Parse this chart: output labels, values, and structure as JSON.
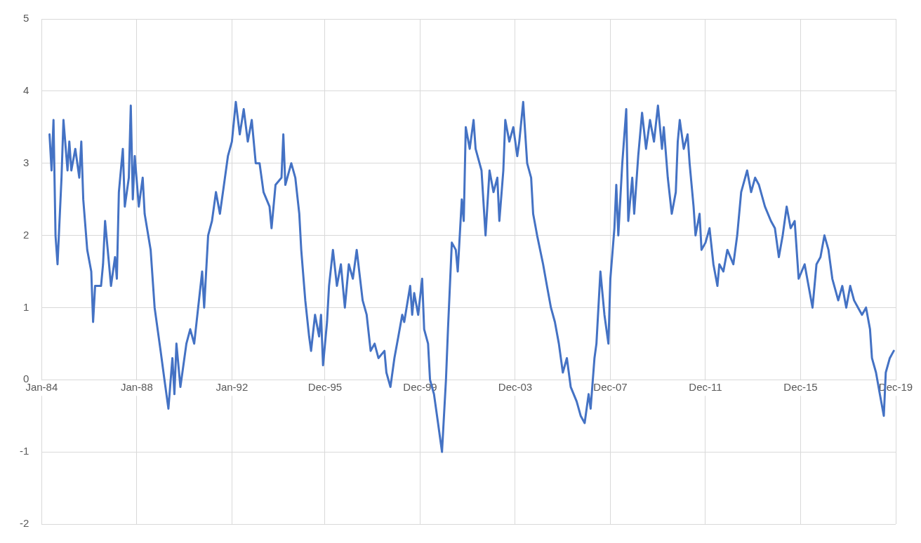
{
  "chart_data": {
    "type": "line",
    "x": [
      "1984-05",
      "1984-06",
      "1984-07",
      "1984-08",
      "1984-09",
      "1984-09",
      "1984-11",
      "1984-12",
      "1985-02",
      "1985-03",
      "1985-04",
      "1985-06",
      "1985-08",
      "1985-09",
      "1985-10",
      "1985-12",
      "1986-02",
      "1986-03",
      "1986-04",
      "1986-07",
      "1986-08",
      "1986-09",
      "1986-11",
      "1986-12",
      "1987-02",
      "1987-03",
      "1987-04",
      "1987-06",
      "1987-07",
      "1987-09",
      "1987-10",
      "1987-11",
      "1987-12",
      "1988-02",
      "1988-04",
      "1988-05",
      "1988-08",
      "1988-10",
      "1989-01",
      "1989-03",
      "1989-05",
      "1989-07",
      "1989-08",
      "1989-09",
      "1989-11",
      "1990-02",
      "1990-04",
      "1990-06",
      "1990-08",
      "1990-10",
      "1990-11",
      "1991-01",
      "1991-03",
      "1991-05",
      "1991-07",
      "1991-09",
      "1991-11",
      "1992-01",
      "1992-03",
      "1992-05",
      "1992-07",
      "1992-09",
      "1992-11",
      "1993-01",
      "1993-03",
      "1993-05",
      "1993-08",
      "1993-09",
      "1993-11",
      "1994-02",
      "1994-03",
      "1994-04",
      "1994-07",
      "1994-09",
      "1994-11",
      "1994-12",
      "1995-02",
      "1995-04",
      "1995-05",
      "1995-07",
      "1995-09",
      "1995-10",
      "1995-11",
      "1996-01",
      "1996-02",
      "1996-04",
      "1996-06",
      "1996-08",
      "1996-10",
      "1996-12",
      "1997-02",
      "1997-04",
      "1997-07",
      "1997-09",
      "1997-11",
      "1998-01",
      "1998-03",
      "1998-06",
      "1998-07",
      "1998-09",
      "1998-11",
      "1999-01",
      "1999-03",
      "1999-04",
      "1999-07",
      "1999-08",
      "1999-09",
      "1999-11",
      "2000-01",
      "2000-02",
      "2000-04",
      "2000-05",
      "2000-07",
      "2000-09",
      "2000-11",
      "2001-01",
      "2001-02",
      "2001-04",
      "2001-06",
      "2001-07",
      "2001-09",
      "2001-10",
      "2001-11",
      "2002-01",
      "2002-03",
      "2002-04",
      "2002-07",
      "2002-09",
      "2002-11",
      "2003-01",
      "2003-03",
      "2003-04",
      "2003-06",
      "2003-07",
      "2003-09",
      "2003-11",
      "2004-01",
      "2004-02",
      "2004-04",
      "2004-06",
      "2004-08",
      "2004-09",
      "2004-11",
      "2005-02",
      "2005-04",
      "2005-06",
      "2005-08",
      "2005-10",
      "2005-12",
      "2006-02",
      "2006-04",
      "2006-07",
      "2006-09",
      "2006-11",
      "2007-01",
      "2007-02",
      "2007-04",
      "2007-05",
      "2007-07",
      "2007-09",
      "2007-11",
      "2007-12",
      "2008-02",
      "2008-03",
      "2008-04",
      "2008-06",
      "2008-08",
      "2008-09",
      "2008-11",
      "2008-12",
      "2009-02",
      "2009-04",
      "2009-06",
      "2009-08",
      "2009-10",
      "2009-12",
      "2010-02",
      "2010-03",
      "2010-05",
      "2010-07",
      "2010-09",
      "2010-10",
      "2010-11",
      "2011-01",
      "2011-03",
      "2011-04",
      "2011-06",
      "2011-07",
      "2011-09",
      "2011-10",
      "2011-12",
      "2012-02",
      "2012-04",
      "2012-06",
      "2012-07",
      "2012-09",
      "2012-11",
      "2013-02",
      "2013-04",
      "2013-06",
      "2013-09",
      "2013-11",
      "2014-01",
      "2014-03",
      "2014-06",
      "2014-09",
      "2014-11",
      "2015-01",
      "2015-03",
      "2015-05",
      "2015-07",
      "2015-09",
      "2015-11",
      "2016-02",
      "2016-04",
      "2016-06",
      "2016-08",
      "2016-10",
      "2016-12",
      "2017-02",
      "2017-04",
      "2017-07",
      "2017-09",
      "2017-11",
      "2018-01",
      "2018-03",
      "2018-05",
      "2018-07",
      "2018-09",
      "2018-11",
      "2018-12",
      "2019-02",
      "2019-04",
      "2019-06",
      "2019-07",
      "2019-09",
      "2019-11"
    ],
    "series": [
      {
        "color": "#4472c4",
        "values": [
          3.4,
          2.9,
          3.6,
          2.0,
          1.6,
          1.6,
          2.8,
          3.6,
          2.9,
          3.3,
          2.9,
          3.2,
          2.8,
          3.3,
          2.5,
          1.8,
          1.5,
          0.8,
          1.3,
          1.3,
          1.6,
          2.2,
          1.6,
          1.3,
          1.7,
          1.4,
          2.6,
          3.2,
          2.4,
          2.8,
          3.8,
          2.5,
          3.1,
          2.4,
          2.8,
          2.3,
          1.8,
          1.0,
          0.4,
          0.0,
          -0.4,
          0.3,
          -0.2,
          0.5,
          -0.1,
          0.5,
          0.7,
          0.5,
          1.0,
          1.5,
          1.0,
          2.0,
          2.2,
          2.6,
          2.3,
          2.7,
          3.1,
          3.3,
          3.85,
          3.4,
          3.75,
          3.3,
          3.6,
          3.0,
          3.0,
          2.6,
          2.4,
          2.1,
          2.7,
          2.8,
          3.4,
          2.7,
          3.0,
          2.8,
          2.3,
          1.8,
          1.1,
          0.6,
          0.4,
          0.9,
          0.6,
          0.9,
          0.2,
          0.8,
          1.3,
          1.8,
          1.3,
          1.6,
          1.0,
          1.6,
          1.4,
          1.8,
          1.1,
          0.9,
          0.4,
          0.5,
          0.3,
          0.4,
          0.1,
          -0.1,
          0.3,
          0.6,
          0.9,
          0.8,
          1.3,
          0.9,
          1.2,
          0.9,
          1.4,
          0.7,
          0.5,
          0.0,
          -0.2,
          -0.6,
          -1.0,
          0.0,
          0.7,
          1.9,
          1.8,
          1.5,
          2.5,
          2.2,
          3.5,
          3.2,
          3.6,
          3.2,
          2.9,
          2.0,
          2.9,
          2.6,
          2.8,
          2.2,
          2.9,
          3.6,
          3.3,
          3.5,
          3.1,
          3.3,
          3.85,
          3.0,
          2.8,
          2.3,
          2.0,
          1.6,
          1.3,
          1.0,
          0.8,
          0.5,
          0.1,
          0.3,
          -0.1,
          -0.3,
          -0.5,
          -0.6,
          -0.2,
          -0.4,
          0.3,
          0.5,
          1.5,
          0.9,
          0.5,
          1.4,
          2.1,
          2.7,
          2.0,
          3.0,
          3.75,
          2.2,
          2.8,
          2.3,
          3.1,
          3.7,
          3.2,
          3.6,
          3.3,
          3.8,
          3.2,
          3.5,
          2.8,
          2.3,
          2.6,
          3.3,
          3.6,
          3.2,
          3.4,
          3.0,
          2.4,
          2.0,
          2.3,
          1.8,
          1.9,
          2.1,
          1.6,
          1.3,
          1.6,
          1.5,
          1.8,
          1.6,
          2.0,
          2.6,
          2.9,
          2.6,
          2.8,
          2.7,
          2.4,
          2.2,
          2.1,
          1.7,
          2.0,
          2.4,
          2.1,
          2.2,
          1.4,
          1.6,
          1.3,
          1.0,
          1.6,
          1.7,
          2.0,
          1.8,
          1.4,
          1.1,
          1.3,
          1.0,
          1.3,
          1.1,
          1.0,
          0.9,
          1.0,
          0.7,
          0.3,
          0.1,
          -0.2,
          -0.5,
          0.1,
          0.3,
          0.4
        ]
      }
    ],
    "xlim": [
      "1984-01",
      "2019-12"
    ],
    "xticks": [
      {
        "value": "1984-01",
        "label": "Jan-84"
      },
      {
        "value": "1988-01",
        "label": "Jan-88"
      },
      {
        "value": "1992-01",
        "label": "Jan-92"
      },
      {
        "value": "1995-12",
        "label": "Dec-95"
      },
      {
        "value": "1999-12",
        "label": "Dec-99"
      },
      {
        "value": "2003-12",
        "label": "Dec-03"
      },
      {
        "value": "2007-12",
        "label": "Dec-07"
      },
      {
        "value": "2011-12",
        "label": "Dec-11"
      },
      {
        "value": "2015-12",
        "label": "Dec-15"
      },
      {
        "value": "2019-12",
        "label": "Dec-19"
      }
    ],
    "ylim": [
      -2,
      5
    ],
    "yticks": [
      -2,
      -1,
      0,
      1,
      2,
      3,
      4,
      5
    ],
    "grid": true,
    "marker": "none",
    "line_style": "solid"
  }
}
